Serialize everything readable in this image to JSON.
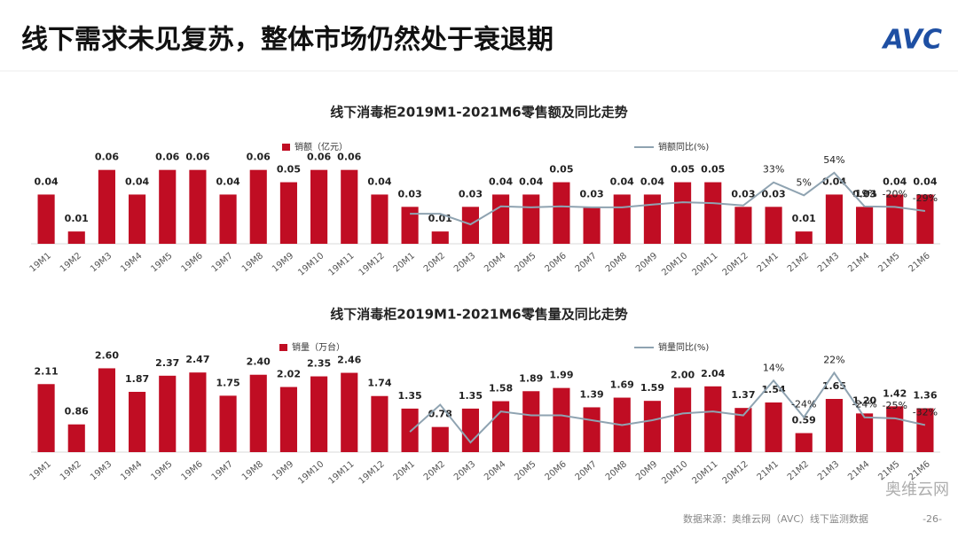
{
  "slide": {
    "title": "线下需求未见复苏，整体市场仍然处于衰退期",
    "logo": "AVC",
    "source": "数据来源：奥维云网（AVC）线下监测数据",
    "page": "-26-",
    "watermark": "奥维云网"
  },
  "chart_data": [
    {
      "type": "bar",
      "title": "线下消毒柜2019M1-2021M6零售额及同比走势",
      "categories": [
        "19M1",
        "19M2",
        "19M3",
        "19M4",
        "19M5",
        "19M6",
        "19M7",
        "19M8",
        "19M9",
        "19M10",
        "19M11",
        "19M12",
        "20M1",
        "20M2",
        "20M3",
        "20M4",
        "20M5",
        "20M6",
        "20M7",
        "20M8",
        "20M9",
        "20M10",
        "20M11",
        "20M12",
        "21M1",
        "21M2",
        "21M3",
        "21M4",
        "21M5",
        "21M6"
      ],
      "series": [
        {
          "name": "销额（亿元）",
          "type": "bar",
          "color": "#c00d23",
          "values": [
            0.04,
            0.01,
            0.06,
            0.04,
            0.06,
            0.06,
            0.04,
            0.06,
            0.05,
            0.06,
            0.06,
            0.04,
            0.03,
            0.01,
            0.03,
            0.04,
            0.04,
            0.05,
            0.03,
            0.04,
            0.04,
            0.05,
            0.05,
            0.03,
            0.03,
            0.01,
            0.04,
            0.03,
            0.04,
            0.04
          ]
        },
        {
          "name": "销额同比(%)",
          "type": "line",
          "axis": "y2",
          "color": "#8fa3b1",
          "values": [
            null,
            null,
            null,
            null,
            null,
            null,
            null,
            null,
            null,
            null,
            null,
            null,
            -35,
            -35,
            -58,
            -19,
            -21,
            -19,
            -21,
            -21,
            -15,
            -10,
            -12,
            -17,
            33,
            5,
            54,
            -19,
            -20,
            -29
          ],
          "value_labels": [
            null,
            null,
            null,
            null,
            null,
            null,
            null,
            null,
            null,
            null,
            null,
            null,
            null,
            null,
            null,
            null,
            null,
            null,
            null,
            null,
            null,
            null,
            null,
            null,
            "33%",
            "5%",
            "54%",
            "-19%",
            "-20%",
            "-29%"
          ]
        }
      ],
      "ylim": [
        0,
        0.09
      ],
      "y2lim": [
        -100,
        140
      ]
    },
    {
      "type": "bar",
      "title": "线下消毒柜2019M1-2021M6零售量及同比走势",
      "categories": [
        "19M1",
        "19M2",
        "19M3",
        "19M4",
        "19M5",
        "19M6",
        "19M7",
        "19M8",
        "19M9",
        "19M10",
        "19M11",
        "19M12",
        "20M1",
        "20M2",
        "20M3",
        "20M4",
        "20M5",
        "20M6",
        "20M7",
        "20M8",
        "20M9",
        "20M10",
        "20M11",
        "20M12",
        "21M1",
        "21M2",
        "21M3",
        "21M4",
        "21M5",
        "21M6"
      ],
      "series": [
        {
          "name": "销量（万台）",
          "type": "bar",
          "color": "#c00d23",
          "values": [
            2.11,
            0.86,
            2.6,
            1.87,
            2.37,
            2.47,
            1.75,
            2.4,
            2.02,
            2.35,
            2.46,
            1.74,
            1.35,
            0.78,
            1.35,
            1.58,
            1.89,
            1.99,
            1.39,
            1.69,
            1.59,
            2.0,
            2.04,
            1.37,
            1.54,
            0.59,
            1.65,
            1.2,
            1.42,
            1.36
          ],
          "value_labels": [
            "2.11",
            "0.86",
            "2.60",
            "1.87",
            "2.37",
            "2.47",
            "1.75",
            "2.40",
            "2.02",
            "2.35",
            "2.46",
            "1.74",
            "1.35",
            "0.78",
            "1.35",
            "1.58",
            "1.89",
            "1.99",
            "1.39",
            "1.69",
            "1.59",
            "2.00",
            "2.04",
            "1.37",
            "1.54",
            "0.59",
            "1.65",
            "1.20",
            "1.42",
            "1.36"
          ]
        },
        {
          "name": "销量同比(%)",
          "type": "line",
          "axis": "y2",
          "color": "#8fa3b1",
          "values": [
            null,
            null,
            null,
            null,
            null,
            null,
            null,
            null,
            null,
            null,
            null,
            null,
            -39,
            -11,
            -50,
            -18,
            -22,
            -22,
            -27,
            -32,
            -27,
            -20,
            -18,
            -22,
            14,
            -24,
            22,
            -24,
            -25,
            -32
          ],
          "value_labels": [
            null,
            null,
            null,
            null,
            null,
            null,
            null,
            null,
            null,
            null,
            null,
            null,
            null,
            null,
            null,
            null,
            null,
            null,
            null,
            null,
            null,
            null,
            null,
            null,
            "14%",
            "-24%",
            "22%",
            "-24%",
            "-25%",
            "-32%"
          ]
        }
      ],
      "ylim": [
        0,
        3.3
      ],
      "y2lim": [
        -60,
        50
      ]
    }
  ]
}
